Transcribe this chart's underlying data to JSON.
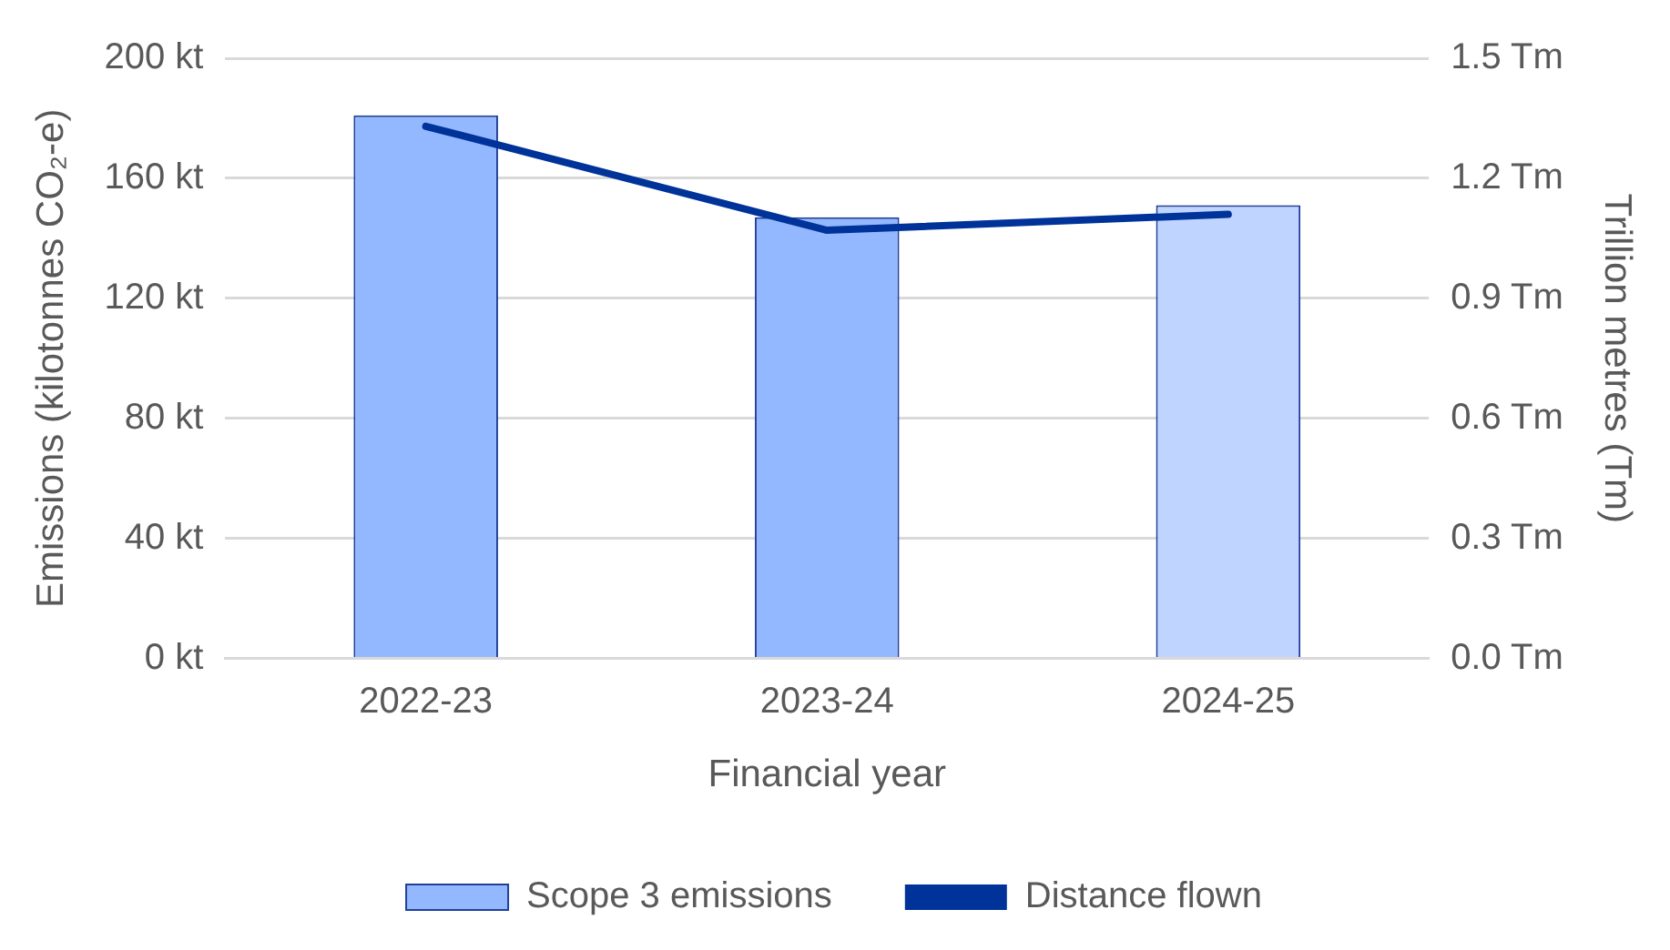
{
  "chart_data": {
    "type": "bar",
    "xlabel": "Financial year",
    "ylabel": "Emissions (kilotonnes CO₂-e)",
    "y2label": "Trillion metres (Tm)",
    "categories": [
      "2022-23",
      "2023-24",
      "2024-25"
    ],
    "series": [
      {
        "name": "Scope 3 emissions",
        "color": "#94b8ff",
        "colors": [
          "#94b8ff",
          "#94b8ff",
          "#bfd4ff"
        ],
        "values": [
          181,
          147,
          151
        ]
      },
      {
        "name": "Distance flown",
        "type": "line",
        "axis": "y2",
        "color": "#003399",
        "values": [
          1.33,
          1.07,
          1.11
        ]
      }
    ],
    "ylim": [
      0,
      200
    ],
    "yticks": [
      {
        "value": 0,
        "label": "0 kt"
      },
      {
        "value": 40,
        "label": "40 kt"
      },
      {
        "value": 80,
        "label": "80 kt"
      },
      {
        "value": 120,
        "label": "120 kt"
      },
      {
        "value": 160,
        "label": "160 kt"
      },
      {
        "value": 200,
        "label": "200 kt"
      }
    ],
    "y2lim": [
      0,
      1.5
    ],
    "y2ticks": [
      {
        "value": 0,
        "label": "0.0 Tm"
      },
      {
        "value": 0.3,
        "label": "0.3 Tm"
      },
      {
        "value": 0.6,
        "label": "0.6 Tm"
      },
      {
        "value": 0.9,
        "label": "0.9 Tm"
      },
      {
        "value": 1.2,
        "label": "1.2 Tm"
      },
      {
        "value": 1.5,
        "label": "1.5 Tm"
      }
    ],
    "grid": "y",
    "legend": "bottom",
    "marker": "none",
    "line_style": "solid"
  }
}
